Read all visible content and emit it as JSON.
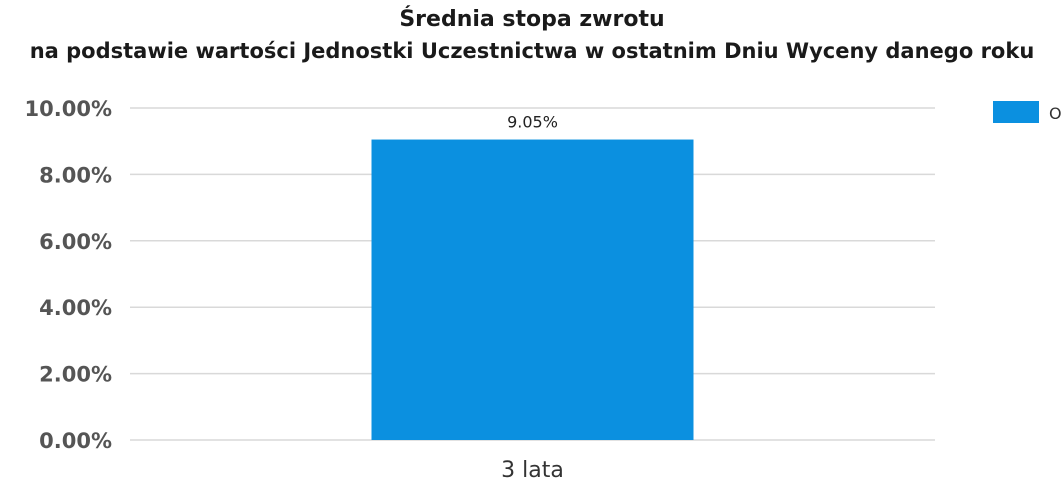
{
  "chart_data": {
    "type": "bar",
    "title": "Średnia stopa zwrotu",
    "subtitle": "na podstawie wartości Jednostki Uczestnictwa w ostatnim Dniu Wyceny danego roku",
    "categories": [
      "3 lata"
    ],
    "series": [
      {
        "name": "O",
        "values": [
          9.05
        ],
        "color": "#0b90e0"
      }
    ],
    "data_labels": [
      "9.05%"
    ],
    "ylim": [
      0,
      10
    ],
    "yticks": [
      0,
      2,
      4,
      6,
      8,
      10
    ],
    "ytick_labels": [
      "0.00%",
      "2.00%",
      "4.00%",
      "6.00%",
      "8.00%",
      "10.00%"
    ],
    "xlabel": "",
    "ylabel": "",
    "grid": true,
    "legend_position": "top-right"
  }
}
